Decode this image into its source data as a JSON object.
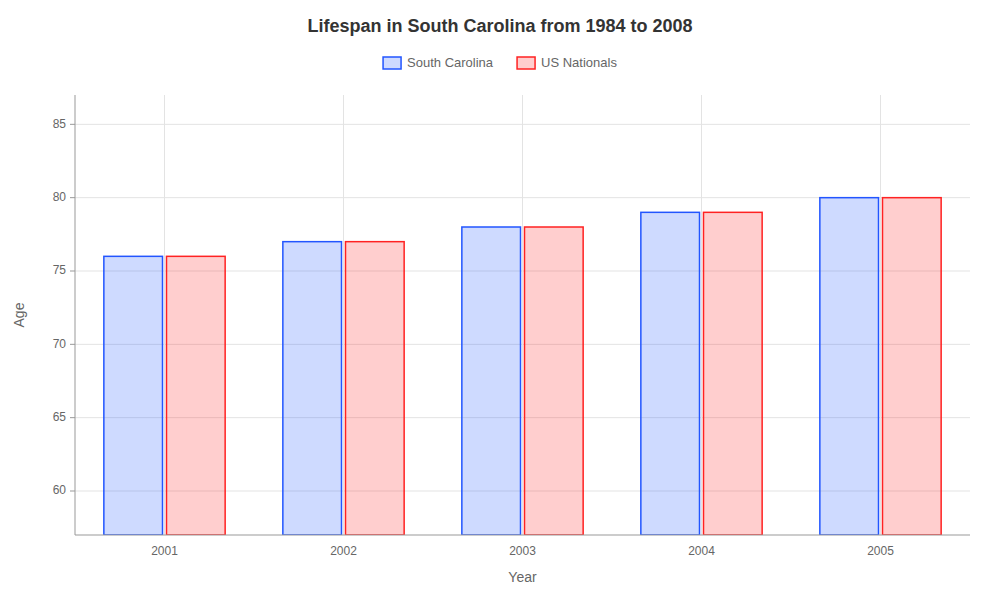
{
  "chart_data": {
    "type": "bar",
    "title": "Lifespan in South Carolina from 1984 to 2008",
    "x_label": "Year",
    "y_label": "Age",
    "categories": [
      "2001",
      "2002",
      "2003",
      "2004",
      "2005"
    ],
    "series": [
      {
        "name": "South Carolina",
        "color": "#2255ff",
        "values": [
          76,
          77,
          78,
          79,
          80
        ]
      },
      {
        "name": "US Nationals",
        "color": "#ff2222",
        "values": [
          76,
          77,
          78,
          79,
          80
        ]
      }
    ],
    "ylim": [
      57,
      87
    ],
    "yticks": [
      60,
      65,
      70,
      75,
      80,
      85
    ],
    "grid": true,
    "legend": "top"
  }
}
